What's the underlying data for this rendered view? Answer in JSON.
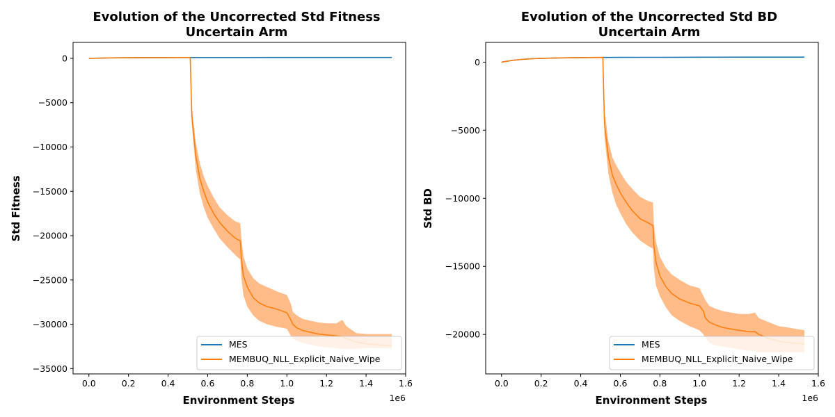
{
  "chart_data": [
    {
      "type": "line",
      "title": "Evolution of the Uncorrected Std Fitness",
      "subtitle": "Uncertain Arm",
      "xlabel": "Environment Steps",
      "ylabel": "Std Fitness",
      "x_offset_label": "1e6",
      "xlim": [
        -0.08,
        1.6
      ],
      "ylim": [
        -35600,
        1800
      ],
      "xticks": [
        0.0,
        0.2,
        0.4,
        0.6,
        0.8,
        1.0,
        1.2,
        1.4,
        1.6
      ],
      "xtick_labels": [
        "0.0",
        "0.2",
        "0.4",
        "0.6",
        "0.8",
        "1.0",
        "1.2",
        "1.4",
        "1.6"
      ],
      "yticks": [
        0,
        -5000,
        -10000,
        -15000,
        -20000,
        -25000,
        -30000,
        -35000
      ],
      "ytick_labels": [
        "0",
        "−5000",
        "−10000",
        "−15000",
        "−20000",
        "−25000",
        "−30000",
        "−35000"
      ],
      "legend": {
        "placement": "lower-right",
        "entries": [
          "MES",
          "MEMBUQ_NLL_Explicit_Naive_Wipe"
        ]
      },
      "grid": false,
      "series": [
        {
          "name": "MES",
          "color": "#1f77b4",
          "x": [
            0.0,
            0.1,
            0.2,
            0.3,
            0.4,
            0.5,
            0.6,
            0.7,
            0.8,
            0.9,
            1.0,
            1.1,
            1.2,
            1.3,
            1.4,
            1.53
          ],
          "y": [
            0,
            50,
            70,
            80,
            85,
            88,
            90,
            92,
            94,
            95,
            96,
            97,
            98,
            99,
            100,
            100
          ]
        },
        {
          "name": "MEMBUQ_NLL_Explicit_Naive_Wipe",
          "color": "#ff7f0e",
          "band_color": "#ffbb88",
          "x": [
            0.0,
            0.1,
            0.2,
            0.3,
            0.4,
            0.51,
            0.512,
            0.52,
            0.54,
            0.56,
            0.58,
            0.6,
            0.63,
            0.66,
            0.7,
            0.74,
            0.765,
            0.77,
            0.78,
            0.8,
            0.83,
            0.86,
            0.9,
            0.95,
            1.0,
            1.02,
            1.03,
            1.05,
            1.08,
            1.12,
            1.16,
            1.2,
            1.25,
            1.28,
            1.3,
            1.35,
            1.4,
            1.45,
            1.53
          ],
          "y": [
            0,
            50,
            70,
            80,
            85,
            88,
            0,
            -6500,
            -11000,
            -13500,
            -15000,
            -16200,
            -17500,
            -18500,
            -19500,
            -20300,
            -20600,
            -22500,
            -24500,
            -25800,
            -27000,
            -27600,
            -28000,
            -28300,
            -28700,
            -29500,
            -30000,
            -30400,
            -30700,
            -30900,
            -31100,
            -31200,
            -31300,
            -31400,
            -31600,
            -32000,
            -32200,
            -32300,
            -32400
          ],
          "band_low": [
            0,
            50,
            70,
            80,
            85,
            88,
            0,
            -7500,
            -12500,
            -15200,
            -16800,
            -18000,
            -19200,
            -20300,
            -21300,
            -22200,
            -22700,
            -24700,
            -26700,
            -28000,
            -29000,
            -29600,
            -30000,
            -30300,
            -30500,
            -31300,
            -31600,
            -31900,
            -32100,
            -32300,
            -32500,
            -32600,
            -32700,
            -32800,
            -32800,
            -32800,
            -32700,
            -32700,
            -32700
          ],
          "band_high": [
            0,
            50,
            70,
            80,
            85,
            88,
            0,
            -5500,
            -9500,
            -11800,
            -13300,
            -14400,
            -15700,
            -16800,
            -17700,
            -18400,
            -18600,
            -20300,
            -22300,
            -23700,
            -24800,
            -25400,
            -25800,
            -26300,
            -26700,
            -27700,
            -28600,
            -29000,
            -29400,
            -29600,
            -29800,
            -29900,
            -29900,
            -29500,
            -30200,
            -31000,
            -31100,
            -31100,
            -31100
          ]
        }
      ]
    },
    {
      "type": "line",
      "title": "Evolution of the Uncorrected Std BD",
      "subtitle": "Uncertain Arm",
      "xlabel": "Environment Steps",
      "ylabel": "Std BD",
      "x_offset_label": "1e6",
      "xlim": [
        -0.08,
        1.6
      ],
      "ylim": [
        -22900,
        1450
      ],
      "xticks": [
        0.0,
        0.2,
        0.4,
        0.6,
        0.8,
        1.0,
        1.2,
        1.4,
        1.6
      ],
      "xtick_labels": [
        "0.0",
        "0.2",
        "0.4",
        "0.6",
        "0.8",
        "1.0",
        "1.2",
        "1.4",
        "1.6"
      ],
      "yticks": [
        0,
        -5000,
        -10000,
        -15000,
        -20000
      ],
      "ytick_labels": [
        "0",
        "−5000",
        "−10000",
        "−15000",
        "−20000"
      ],
      "legend": {
        "placement": "lower-right",
        "entries": [
          "MES",
          "MEMBUQ_NLL_Explicit_Naive_Wipe"
        ]
      },
      "grid": false,
      "series": [
        {
          "name": "MES",
          "color": "#1f77b4",
          "x": [
            0.0,
            0.05,
            0.1,
            0.15,
            0.2,
            0.3,
            0.4,
            0.5,
            0.6,
            0.7,
            0.8,
            0.9,
            1.0,
            1.1,
            1.2,
            1.3,
            1.4,
            1.53
          ],
          "y": [
            0,
            120,
            200,
            250,
            280,
            310,
            330,
            340,
            345,
            350,
            355,
            360,
            362,
            365,
            367,
            368,
            370,
            370
          ]
        },
        {
          "name": "MEMBUQ_NLL_Explicit_Naive_Wipe",
          "color": "#ff7f0e",
          "band_color": "#ffbb88",
          "x": [
            0.0,
            0.05,
            0.1,
            0.15,
            0.2,
            0.3,
            0.4,
            0.51,
            0.512,
            0.52,
            0.54,
            0.56,
            0.58,
            0.6,
            0.63,
            0.66,
            0.7,
            0.74,
            0.765,
            0.77,
            0.78,
            0.8,
            0.83,
            0.86,
            0.9,
            0.95,
            1.0,
            1.02,
            1.03,
            1.05,
            1.08,
            1.12,
            1.16,
            1.2,
            1.25,
            1.28,
            1.3,
            1.35,
            1.4,
            1.45,
            1.53
          ],
          "y": [
            0,
            120,
            200,
            250,
            280,
            310,
            330,
            340,
            300,
            -4500,
            -7000,
            -8300,
            -9000,
            -9600,
            -10300,
            -10900,
            -11500,
            -11800,
            -12000,
            -13500,
            -14700,
            -15700,
            -16500,
            -17000,
            -17400,
            -17700,
            -17900,
            -18300,
            -18800,
            -19100,
            -19300,
            -19500,
            -19600,
            -19700,
            -19800,
            -19800,
            -20000,
            -20300,
            -20500,
            -20600,
            -20700
          ],
          "band_low": [
            0,
            120,
            200,
            250,
            280,
            310,
            330,
            340,
            300,
            -5500,
            -8200,
            -9600,
            -10500,
            -11100,
            -11900,
            -12500,
            -13100,
            -13500,
            -13700,
            -15200,
            -16400,
            -17200,
            -18000,
            -18600,
            -19000,
            -19400,
            -19700,
            -20000,
            -20300,
            -20600,
            -20800,
            -20900,
            -21000,
            -21100,
            -21200,
            -21200,
            -21300,
            -21300,
            -21300,
            -21300,
            -21300
          ],
          "band_high": [
            0,
            120,
            200,
            250,
            280,
            310,
            330,
            340,
            300,
            -3500,
            -5800,
            -7000,
            -7600,
            -8100,
            -8800,
            -9300,
            -9900,
            -10200,
            -10300,
            -12000,
            -13200,
            -14300,
            -15100,
            -15600,
            -16000,
            -16400,
            -16600,
            -17200,
            -17500,
            -17900,
            -18100,
            -18300,
            -18400,
            -18500,
            -18500,
            -18400,
            -18800,
            -19100,
            -19400,
            -19500,
            -19700
          ]
        }
      ]
    }
  ]
}
